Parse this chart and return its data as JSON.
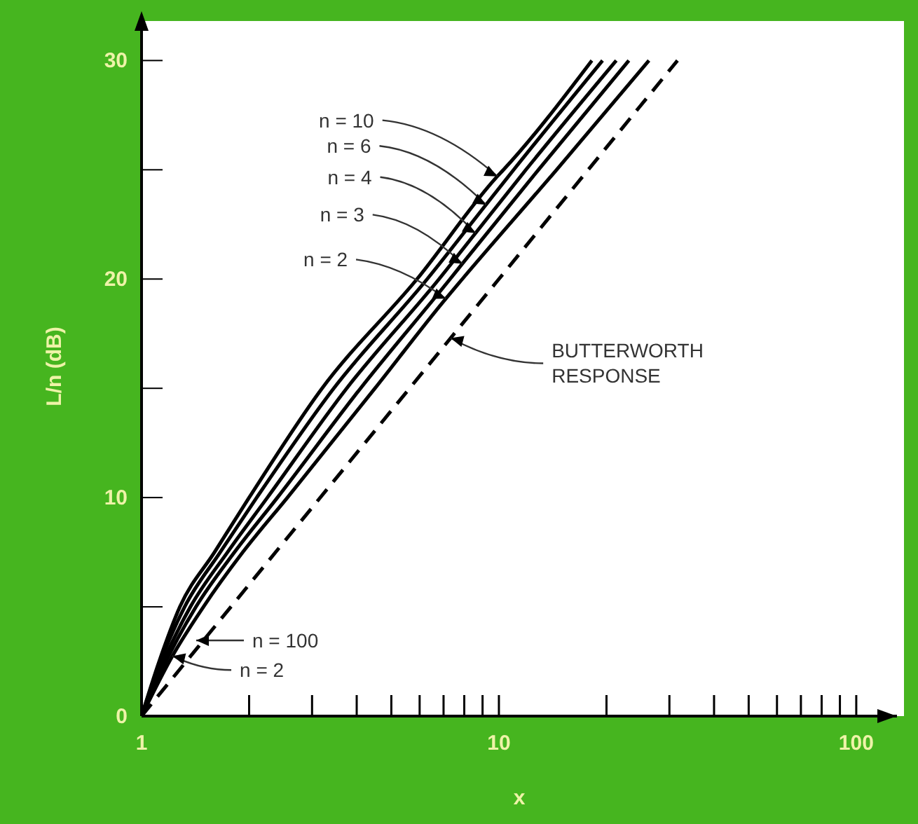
{
  "chart_data": {
    "type": "line",
    "xlabel": "x",
    "ylabel": "L/n (dB)",
    "log": "x",
    "xlim": [
      1,
      130
    ],
    "ylim": [
      0,
      32
    ],
    "xticks": [
      1,
      {
        "value": 2,
        "label": null
      },
      {
        "value": 3,
        "label": null
      },
      {
        "value": 4,
        "label": null
      },
      {
        "value": 5,
        "label": null
      },
      {
        "value": 6,
        "label": null
      },
      {
        "value": 7,
        "label": null
      },
      {
        "value": 8,
        "label": null
      },
      {
        "value": 9,
        "label": null
      },
      10,
      {
        "value": 20,
        "label": null
      },
      {
        "value": 30,
        "label": null
      },
      {
        "value": 40,
        "label": null
      },
      {
        "value": 50,
        "label": null
      },
      {
        "value": 60,
        "label": null
      },
      {
        "value": 70,
        "label": null
      },
      {
        "value": 80,
        "label": null
      },
      {
        "value": 90,
        "label": null
      },
      100
    ],
    "yticks": [
      0,
      {
        "value": 5,
        "label": null
      },
      10,
      {
        "value": 15,
        "label": null
      },
      20,
      {
        "value": 25,
        "label": null
      },
      30
    ],
    "series": [
      {
        "color": "#000000",
        "x": [
          1,
          1.12,
          1.28,
          1.6,
          2,
          3.2,
          5.9,
          9.9,
          10.3,
          18.2
        ],
        "values": [
          0,
          2.5,
          5,
          7.5,
          10,
          15,
          20,
          24.7,
          25,
          30
        ]
      },
      {
        "color": "#000000",
        "x": [
          1,
          1.13,
          1.32,
          1.66,
          2.1,
          3.45,
          6.3,
          9.2,
          11,
          19.5
        ],
        "values": [
          0,
          2.5,
          5,
          7.5,
          10,
          15,
          20,
          23.4,
          25,
          30
        ]
      },
      {
        "color": "#000000",
        "x": [
          1,
          1.15,
          1.37,
          1.74,
          2.25,
          3.75,
          6.8,
          8.6,
          11.9,
          21.3
        ],
        "values": [
          0,
          2.5,
          5,
          7.5,
          10,
          15,
          20,
          22.1,
          25,
          30
        ]
      },
      {
        "color": "#000000",
        "x": [
          1,
          1.17,
          1.42,
          1.82,
          2.4,
          4.1,
          7.3,
          7.9,
          12.9,
          23.1
        ],
        "values": [
          0,
          2.5,
          5,
          7.5,
          10,
          15,
          20,
          20.7,
          25,
          30
        ]
      },
      {
        "color": "#000000",
        "x": [
          1,
          1.22,
          1.49,
          1.92,
          2.56,
          4.5,
          7.1,
          7.9,
          14.5,
          26.3
        ],
        "values": [
          0,
          2.75,
          5,
          7.5,
          10,
          15,
          19.1,
          20,
          25,
          30
        ]
      },
      {
        "color": "#000000",
        "line_style": "dashed",
        "x": [
          1,
          10,
          31.6
        ],
        "values": [
          0,
          20,
          30
        ]
      }
    ],
    "annotations": [
      {
        "text": "n = 10",
        "x": 9.9,
        "y": 24.7
      },
      {
        "text": "n = 6",
        "x": 9.2,
        "y": 23.4
      },
      {
        "text": "n = 4",
        "x": 8.6,
        "y": 22.1
      },
      {
        "text": "n = 3",
        "x": 7.9,
        "y": 20.7
      },
      {
        "text": "n = 2",
        "x": 7.1,
        "y": 19.1
      },
      {
        "text": "BUTTERWORTH RESPONSE",
        "x": 7.33,
        "y": 17.3
      },
      "n = 100",
      {
        "text": "n = 2",
        "x": 1.22,
        "y": 2.75
      }
    ]
  }
}
